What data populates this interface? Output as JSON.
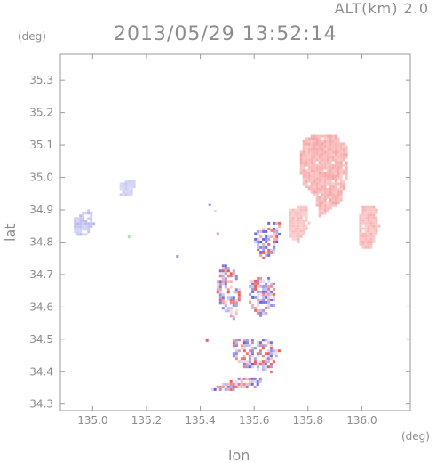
{
  "header": {
    "alt_label": "ALT(km) 2.0",
    "timestamp": "2013/05/29 13:52:14"
  },
  "axes": {
    "y_unit": "(deg)",
    "x_unit": "(deg)",
    "ylabel": "lat",
    "xlabel": "lon"
  },
  "chart_data": {
    "type": "heatmap",
    "xlabel": "lon",
    "ylabel": "lat",
    "x_unit": "deg",
    "y_unit": "deg",
    "xlim": [
      134.88,
      136.18
    ],
    "ylim": [
      34.28,
      35.38
    ],
    "x_ticks": [
      135.0,
      135.2,
      135.4,
      135.6,
      135.8,
      136.0
    ],
    "x_tick_labels": [
      "135.0",
      "135.2",
      "135.4",
      "135.6",
      "135.8",
      "136.0"
    ],
    "y_ticks": [
      34.3,
      34.4,
      34.5,
      34.6,
      34.7,
      34.8,
      34.9,
      35.0,
      35.1,
      35.2,
      35.3
    ],
    "y_tick_labels": [
      "34.3",
      "34.4",
      "34.5",
      "34.6",
      "34.7",
      "34.8",
      "34.9",
      "35.0",
      "35.1",
      "35.2",
      "35.3"
    ],
    "grid": false,
    "colors": {
      "positive": "#f07878",
      "positive_light": "#f8c8c8",
      "negative": "#8080e8",
      "negative_light": "#d0d0f8"
    },
    "regions": [
      {
        "id": "ne-red-cluster",
        "sign": "positive",
        "intensity": 0.35,
        "points": [
          [
            135.78,
            35.12
          ],
          [
            135.83,
            35.14
          ],
          [
            135.9,
            35.14
          ],
          [
            135.94,
            35.1
          ],
          [
            135.94,
            35.0
          ],
          [
            135.92,
            34.93
          ],
          [
            135.87,
            34.9
          ],
          [
            135.84,
            34.88
          ],
          [
            135.82,
            34.95
          ],
          [
            135.78,
            34.98
          ],
          [
            135.76,
            35.05
          ]
        ]
      },
      {
        "id": "ne-red-lobe",
        "sign": "positive",
        "intensity": 0.25,
        "points": [
          [
            135.73,
            34.91
          ],
          [
            135.79,
            34.92
          ],
          [
            135.8,
            34.86
          ],
          [
            135.76,
            34.8
          ],
          [
            135.72,
            34.82
          ]
        ]
      },
      {
        "id": "east-red-cluster",
        "sign": "positive",
        "intensity": 0.3,
        "points": [
          [
            136.0,
            34.92
          ],
          [
            136.05,
            34.91
          ],
          [
            136.06,
            34.85
          ],
          [
            136.03,
            34.78
          ],
          [
            135.99,
            34.79
          ],
          [
            135.98,
            34.86
          ]
        ]
      },
      {
        "id": "west-blue-cluster",
        "sign": "negative",
        "intensity": 0.3,
        "points": [
          [
            134.93,
            34.88
          ],
          [
            134.99,
            34.91
          ],
          [
            135.0,
            34.86
          ],
          [
            134.97,
            34.82
          ],
          [
            134.93,
            34.83
          ]
        ]
      },
      {
        "id": "west-blue-small",
        "sign": "negative",
        "intensity": 0.2,
        "points": [
          [
            135.09,
            34.98
          ],
          [
            135.13,
            35.0
          ],
          [
            135.16,
            34.99
          ],
          [
            135.14,
            34.95
          ],
          [
            135.1,
            34.95
          ]
        ]
      },
      {
        "id": "central-mixed-upper",
        "sign": "mixed",
        "intensity": 0.6,
        "points": [
          [
            135.48,
            34.74
          ],
          [
            135.53,
            34.71
          ],
          [
            135.55,
            34.62
          ],
          [
            135.52,
            34.56
          ],
          [
            135.47,
            34.6
          ],
          [
            135.45,
            34.68
          ]
        ]
      },
      {
        "id": "central-mixed-right",
        "sign": "mixed",
        "intensity": 0.6,
        "points": [
          [
            135.58,
            34.69
          ],
          [
            135.67,
            34.7
          ],
          [
            135.67,
            34.6
          ],
          [
            135.62,
            34.57
          ],
          [
            135.57,
            34.62
          ]
        ]
      },
      {
        "id": "central-mixed-lower",
        "sign": "mixed",
        "intensity": 0.6,
        "points": [
          [
            135.52,
            34.51
          ],
          [
            135.65,
            34.51
          ],
          [
            135.69,
            34.47
          ],
          [
            135.66,
            34.4
          ],
          [
            135.55,
            34.42
          ],
          [
            135.51,
            34.46
          ]
        ]
      },
      {
        "id": "central-mixed-north",
        "sign": "mixed",
        "intensity": 0.5,
        "points": [
          [
            135.59,
            34.82
          ],
          [
            135.64,
            34.87
          ],
          [
            135.7,
            34.86
          ],
          [
            135.67,
            34.77
          ],
          [
            135.62,
            34.75
          ]
        ]
      },
      {
        "id": "south-tail",
        "sign": "mixed",
        "intensity": 0.5,
        "points": [
          [
            135.43,
            34.35
          ],
          [
            135.52,
            34.38
          ],
          [
            135.62,
            34.39
          ],
          [
            135.62,
            34.36
          ],
          [
            135.48,
            34.34
          ]
        ]
      }
    ]
  }
}
